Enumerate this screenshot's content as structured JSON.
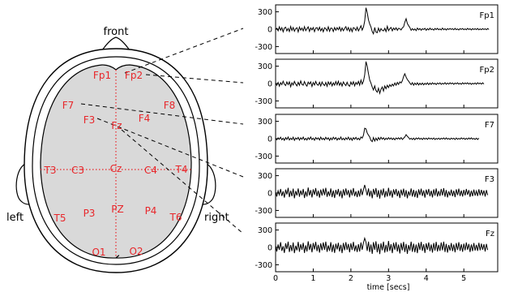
{
  "head": {
    "front_label": "front",
    "left_label": "left",
    "right_label": "right",
    "electrode_color": "#e8262a",
    "scalp_fill": "#d9d9d9",
    "electrodes": [
      {
        "name": "Fp1"
      },
      {
        "name": "Fp2"
      },
      {
        "name": "F7"
      },
      {
        "name": "F8"
      },
      {
        "name": "F3"
      },
      {
        "name": "Fz"
      },
      {
        "name": "F4"
      },
      {
        "name": "T3"
      },
      {
        "name": "C3"
      },
      {
        "name": "Cz"
      },
      {
        "name": "C4"
      },
      {
        "name": "T4"
      },
      {
        "name": "T5"
      },
      {
        "name": "P3"
      },
      {
        "name": "PZ"
      },
      {
        "name": "P4"
      },
      {
        "name": "T6"
      },
      {
        "name": "O1"
      },
      {
        "name": "O2"
      }
    ]
  },
  "chart_data": {
    "type": "line",
    "xlabel": "time [secs]",
    "xlim": [
      0,
      5.9
    ],
    "x_ticks": [
      "0",
      "1",
      "2",
      "3",
      "4",
      "5"
    ],
    "ylim": [
      -420,
      420
    ],
    "y_ticks": [
      "300",
      "0",
      "-300"
    ],
    "sample_rate": 30,
    "series": [
      {
        "name": "Fp1",
        "values": [
          0,
          15,
          -28,
          40,
          -18,
          26,
          -45,
          20,
          35,
          -30,
          12,
          -40,
          48,
          -22,
          30,
          -35,
          10,
          25,
          -48,
          38,
          -15,
          20,
          -30,
          45,
          -25,
          8,
          40,
          -38,
          22,
          -12,
          30,
          -42,
          18,
          28,
          -20,
          35,
          -30,
          15,
          -45,
          25,
          10,
          -28,
          42,
          -35,
          20,
          15,
          -40,
          30,
          -18,
          26,
          -10,
          38,
          -32,
          22,
          -26,
          12,
          45,
          -20,
          30,
          -36,
          18,
          -42,
          28,
          14,
          -22,
          35,
          -30,
          10,
          60,
          -15,
          35,
          140,
          370,
          290,
          160,
          90,
          40,
          -40,
          -80,
          30,
          -50,
          -60,
          20,
          -40,
          10,
          -20,
          -30,
          15,
          -40,
          50,
          -25,
          10,
          30,
          -30,
          20,
          -10,
          25,
          -20,
          15,
          8,
          -12,
          25,
          40,
          120,
          180,
          100,
          60,
          30,
          -20,
          10,
          -15,
          5,
          -25,
          20,
          -10,
          12,
          -18,
          8,
          -5,
          15,
          -20,
          10,
          -12,
          18,
          -8,
          5,
          -15,
          12,
          -6,
          14,
          -10,
          6,
          -12,
          20,
          -10,
          8,
          -14,
          10,
          -6,
          12,
          -4,
          8,
          -10,
          14,
          -8,
          6,
          -12,
          10,
          -4,
          12,
          -8,
          6,
          -10,
          14,
          -6,
          8,
          -12,
          10,
          -5,
          9,
          -7,
          12,
          -10,
          6,
          -8,
          10,
          -5,
          7,
          -9,
          11,
          -6
        ]
      },
      {
        "name": "Fp2",
        "values": [
          10,
          -30,
          20,
          -45,
          15,
          -20,
          40,
          -12,
          -35,
          28,
          -18,
          30,
          -55,
          12,
          -25,
          38,
          -10,
          -40,
          22,
          -30,
          45,
          -15,
          -28,
          35,
          -20,
          -45,
          25,
          -10,
          30,
          -50,
          18,
          -25,
          36,
          -15,
          -30,
          22,
          -42,
          28,
          -12,
          -35,
          20,
          -48,
          30,
          -18,
          26,
          -40,
          12,
          -28,
          35,
          -22,
          40,
          -30,
          15,
          -45,
          28,
          -10,
          -35,
          22,
          -30,
          -48,
          26,
          -18,
          32,
          -40,
          20,
          -14,
          38,
          -28,
          60,
          -10,
          40,
          150,
          380,
          300,
          170,
          60,
          10,
          -60,
          -110,
          -40,
          -120,
          -150,
          -80,
          -170,
          -100,
          -60,
          -130,
          -40,
          -90,
          -30,
          -70,
          -20,
          -50,
          -10,
          -40,
          10,
          -30,
          20,
          -15,
          30,
          10,
          50,
          120,
          170,
          110,
          70,
          40,
          10,
          -20,
          15,
          -30,
          8,
          -20,
          12,
          -25,
          5,
          -18,
          10,
          -22,
          6,
          -15,
          12,
          -20,
          8,
          -16,
          14,
          -10,
          6,
          -18,
          10,
          -8,
          12,
          -14,
          6,
          -10,
          16,
          -12,
          8,
          -10,
          12,
          -6,
          10,
          -14,
          8,
          -6,
          12,
          -10,
          6,
          -12,
          14,
          -8,
          10,
          -6,
          12,
          -10,
          8,
          -14,
          6,
          -8,
          10,
          -12,
          14,
          -6,
          8,
          -10,
          12,
          -8
        ]
      },
      {
        "name": "F7",
        "values": [
          5,
          -20,
          15,
          -10,
          25,
          -18,
          8,
          -28,
          20,
          -12,
          30,
          -22,
          10,
          -15,
          26,
          -30,
          12,
          -8,
          22,
          -25,
          15,
          -10,
          28,
          -20,
          6,
          -24,
          18,
          -12,
          30,
          -16,
          10,
          -26,
          20,
          -8,
          14,
          -22,
          28,
          -14,
          8,
          -20,
          24,
          -10,
          16,
          -28,
          12,
          -18,
          26,
          -8,
          20,
          -24,
          10,
          -14,
          30,
          -18,
          8,
          -22,
          16,
          -12,
          26,
          -20,
          12,
          -28,
          18,
          -10,
          24,
          -14,
          8,
          -20,
          30,
          10,
          60,
          180,
          170,
          100,
          60,
          30,
          -30,
          -50,
          20,
          -40,
          10,
          -30,
          20,
          -15,
          25,
          -10,
          15,
          -20,
          10,
          -12,
          18,
          -8,
          14,
          -16,
          10,
          -20,
          12,
          -6,
          16,
          -10,
          20,
          -14,
          8,
          30,
          70,
          40,
          20,
          -10,
          8,
          -14,
          10,
          -18,
          12,
          -6,
          14,
          -10,
          8,
          -16,
          12,
          -8,
          10,
          -12,
          14,
          -6,
          8,
          -10,
          12,
          -14,
          6,
          -8,
          10,
          -12,
          8,
          -6,
          12,
          -10,
          14,
          -8,
          6,
          -12,
          10,
          -6,
          8,
          -14,
          12,
          -10,
          6,
          -8,
          14,
          -6,
          10,
          -12,
          8,
          -10,
          12,
          -6,
          14,
          -8,
          6,
          -12,
          10,
          -14,
          8
        ]
      },
      {
        "name": "F3",
        "values": [
          20,
          -60,
          40,
          -30,
          70,
          -50,
          30,
          -80,
          60,
          -25,
          90,
          -70,
          40,
          -55,
          75,
          -90,
          35,
          -40,
          80,
          -65,
          45,
          -35,
          70,
          -85,
          30,
          -60,
          95,
          -40,
          50,
          -75,
          65,
          -30,
          85,
          -55,
          40,
          -80,
          60,
          -45,
          75,
          -35,
          90,
          -65,
          30,
          -50,
          80,
          -70,
          45,
          -85,
          55,
          -30,
          70,
          -60,
          40,
          -90,
          65,
          -45,
          80,
          -35,
          50,
          -75,
          60,
          -40,
          85,
          -55,
          30,
          -70,
          45,
          -60,
          75,
          -35,
          60,
          140,
          50,
          -40,
          80,
          -60,
          40,
          -90,
          70,
          -30,
          85,
          -70,
          50,
          -95,
          60,
          -40,
          80,
          -75,
          35,
          -60,
          90,
          -50,
          45,
          -80,
          65,
          -30,
          70,
          -55,
          40,
          -85,
          60,
          -40,
          75,
          -65,
          50,
          -90,
          30,
          -45,
          80,
          -60,
          55,
          -70,
          40,
          -85,
          65,
          -35,
          75,
          -50,
          45,
          -80,
          60,
          -30,
          70,
          -55,
          40,
          -75,
          65,
          -45,
          80,
          -60,
          35,
          -50,
          70,
          -40,
          85,
          -65,
          50,
          -75,
          30,
          -45,
          60,
          -55,
          40,
          -70,
          65,
          -35,
          75,
          -50,
          45,
          -60,
          55,
          -40,
          70,
          -30,
          50,
          -65,
          40,
          -55,
          60,
          -45,
          35,
          -50,
          65,
          -40,
          55,
          -30,
          45,
          -60,
          50,
          -35
        ]
      },
      {
        "name": "Fz",
        "values": [
          30,
          -70,
          50,
          -40,
          90,
          -60,
          20,
          -95,
          70,
          -30,
          100,
          -80,
          40,
          -65,
          85,
          -100,
          30,
          -50,
          95,
          -75,
          55,
          -40,
          80,
          -95,
          35,
          -70,
          105,
          -45,
          60,
          -85,
          75,
          -35,
          95,
          -65,
          45,
          -90,
          70,
          -50,
          85,
          -40,
          100,
          -75,
          35,
          -60,
          90,
          -80,
          50,
          -95,
          65,
          -35,
          80,
          -70,
          45,
          -100,
          75,
          -50,
          90,
          -40,
          60,
          -85,
          70,
          -45,
          95,
          -65,
          35,
          -80,
          55,
          -70,
          85,
          -40,
          80,
          160,
          90,
          -60,
          100,
          -80,
          50,
          -110,
          90,
          -40,
          105,
          -85,
          60,
          -115,
          70,
          -50,
          100,
          -90,
          45,
          -75,
          110,
          -60,
          55,
          -100,
          80,
          -40,
          90,
          -70,
          50,
          -105,
          75,
          -50,
          95,
          -80,
          60,
          -110,
          40,
          -55,
          100,
          -75,
          65,
          -85,
          50,
          -100,
          80,
          -45,
          95,
          -60,
          55,
          -95,
          70,
          -40,
          85,
          -65,
          50,
          -90,
          75,
          -55,
          95,
          -70,
          45,
          -60,
          85,
          -50,
          100,
          -80,
          60,
          -90,
          40,
          -55,
          75,
          -65,
          50,
          -85,
          75,
          -45,
          90,
          -60,
          55,
          -75,
          65,
          -50,
          85,
          -40,
          60,
          -80,
          50,
          -65,
          75,
          -55,
          45,
          -60,
          80,
          -50,
          65,
          -40,
          55,
          -70,
          60,
          -45
        ]
      }
    ]
  }
}
